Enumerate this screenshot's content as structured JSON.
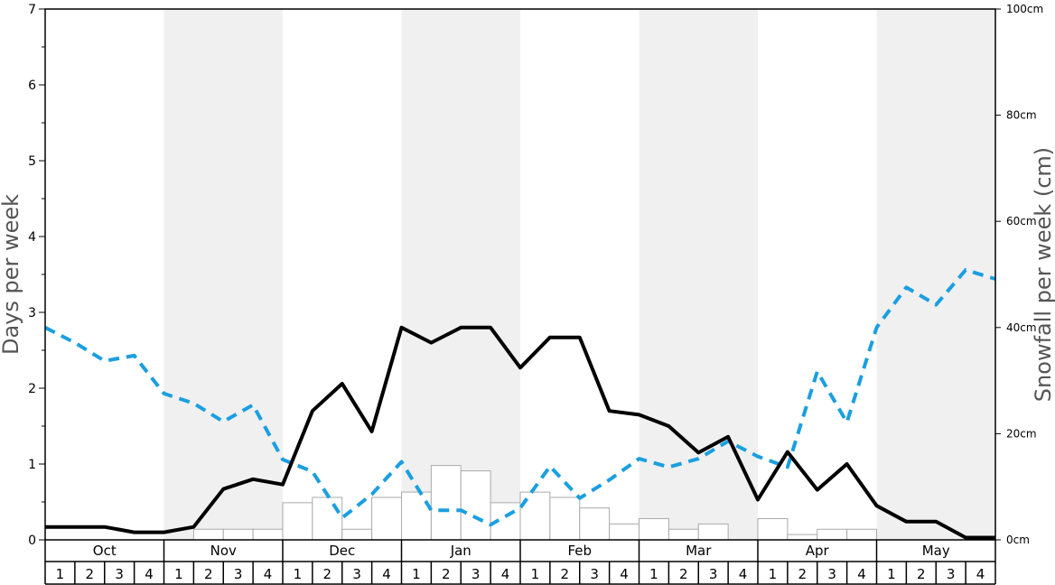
{
  "chart_data": {
    "type": "bar+line",
    "months": [
      "Oct",
      "Nov",
      "Dec",
      "Jan",
      "Feb",
      "Mar",
      "Apr",
      "May"
    ],
    "weeks": [
      "1",
      "2",
      "3",
      "4"
    ],
    "ylabel_left": "Days per week",
    "ylabel_right": "Snowfall per week (cm)",
    "ylim_left": [
      0,
      7
    ],
    "yticks_left": [
      "0",
      "1",
      "2",
      "3",
      "4",
      "5",
      "6",
      "7"
    ],
    "ylim_right": [
      0,
      100
    ],
    "yticks_right": [
      "0cm",
      "20cm",
      "40cm",
      "60cm",
      "80cm",
      "100cm"
    ],
    "series": [
      {
        "role": "snowfall_bars",
        "color": "#aaaaaa",
        "values": [
          0,
          0,
          0,
          0,
          0,
          2,
          2,
          2,
          7,
          8,
          2,
          8,
          9,
          14,
          13,
          7,
          9,
          8,
          6,
          3,
          4,
          2,
          3,
          0,
          4,
          1,
          2,
          2,
          0,
          0,
          0,
          0
        ]
      },
      {
        "role": "days_black_line",
        "color": "#000000",
        "values": [
          0.17,
          0.17,
          0.17,
          0.1,
          0.1,
          0.17,
          0.67,
          0.8,
          0.73,
          1.7,
          2.06,
          1.43,
          2.8,
          2.6,
          2.8,
          2.8,
          2.27,
          2.67,
          2.67,
          1.7,
          1.65,
          1.5,
          1.15,
          1.36,
          0.53,
          1.16,
          0.66,
          1.0,
          0.45,
          0.24,
          0.24,
          0.03,
          0.03
        ]
      },
      {
        "role": "days_blue_dashed",
        "color": "#1a9fe0",
        "values": [
          2.8,
          2.6,
          2.36,
          2.43,
          1.93,
          1.8,
          1.56,
          1.78,
          1.06,
          0.9,
          0.29,
          0.6,
          1.03,
          0.39,
          0.39,
          0.2,
          0.42,
          0.97,
          0.55,
          0.79,
          1.07,
          0.96,
          1.07,
          1.3,
          1.1,
          0.96,
          2.22,
          1.55,
          2.8,
          3.33,
          3.1,
          3.56,
          3.44
        ]
      }
    ],
    "grid": false,
    "shading": "alternating months"
  }
}
